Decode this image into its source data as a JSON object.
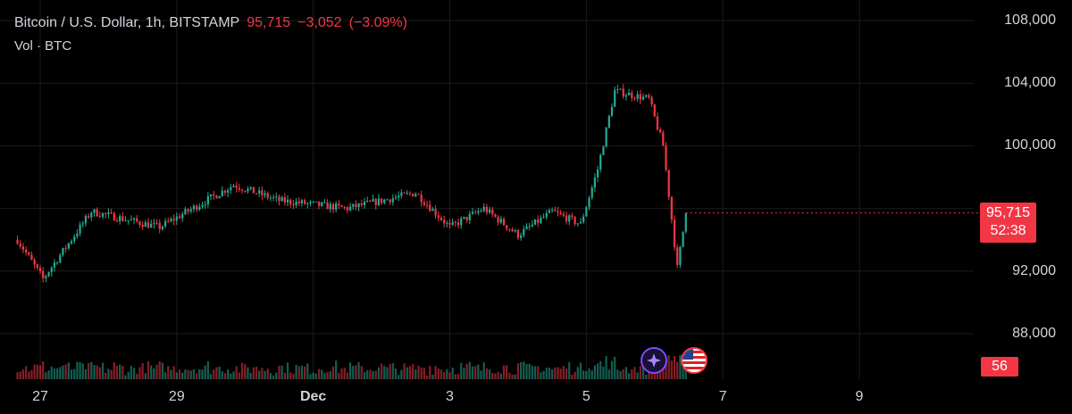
{
  "header": {
    "symbol": "Bitcoin / U.S. Dollar, 1h, BITSTAMP",
    "last_price": "95,715",
    "change": "−3,052",
    "change_pct": "(−3.09%)",
    "volume_label": "Vol · BTC"
  },
  "price_tag": {
    "price": "95,715",
    "countdown": "52:38"
  },
  "volume_tag": "56",
  "colors": {
    "up": "#22ab94",
    "down": "#f23645",
    "background": "#000000",
    "grid": "#1c1c1c",
    "text": "#d1d4dc"
  },
  "events": [
    {
      "icon": "sparkle-icon",
      "color": "#7b4cff"
    },
    {
      "icon": "us-flag-icon",
      "color": "#f23645"
    }
  ],
  "chart_data": {
    "type": "candlestick",
    "y_axis": {
      "ticks": [
        "108,000",
        "104,000",
        "100,000",
        "92,000",
        "88,000"
      ],
      "tick_values": [
        108000,
        104000,
        100000,
        92000,
        88000
      ],
      "range": [
        86500,
        109000
      ]
    },
    "x_axis": {
      "ticks": [
        "27",
        "29",
        "Dec",
        "3",
        "5",
        "7",
        "9"
      ]
    },
    "time_range": [
      "2024-11-26T16:00",
      "2024-12-10T10:00"
    ],
    "key_points": [
      {
        "date": "2024-11-26T16:00",
        "price": 94000
      },
      {
        "date": "2024-11-27T01:00",
        "price": 91500
      },
      {
        "date": "2024-11-27T18:00",
        "price": 95800
      },
      {
        "date": "2024-11-28T18:00",
        "price": 94800
      },
      {
        "date": "2024-11-29T20:00",
        "price": 97500
      },
      {
        "date": "2024-11-30T12:00",
        "price": 96500
      },
      {
        "date": "2024-12-01T12:00",
        "price": 96000
      },
      {
        "date": "2024-12-02T12:00",
        "price": 97000
      },
      {
        "date": "2024-12-03T00:00",
        "price": 94800
      },
      {
        "date": "2024-12-03T12:00",
        "price": 96000
      },
      {
        "date": "2024-12-04T00:00",
        "price": 94300
      },
      {
        "date": "2024-12-04T12:00",
        "price": 95800
      },
      {
        "date": "2024-12-04T22:00",
        "price": 95000
      },
      {
        "date": "2024-12-05T04:00",
        "price": 98500
      },
      {
        "date": "2024-12-05T10:00",
        "price": 103500
      },
      {
        "date": "2024-12-05T22:00",
        "price": 103000
      },
      {
        "date": "2024-12-06T03:00",
        "price": 100000
      },
      {
        "date": "2024-12-06T08:00",
        "price": 92200
      },
      {
        "date": "2024-12-06T11:00",
        "price": 95715
      }
    ],
    "last_price": 95715
  }
}
